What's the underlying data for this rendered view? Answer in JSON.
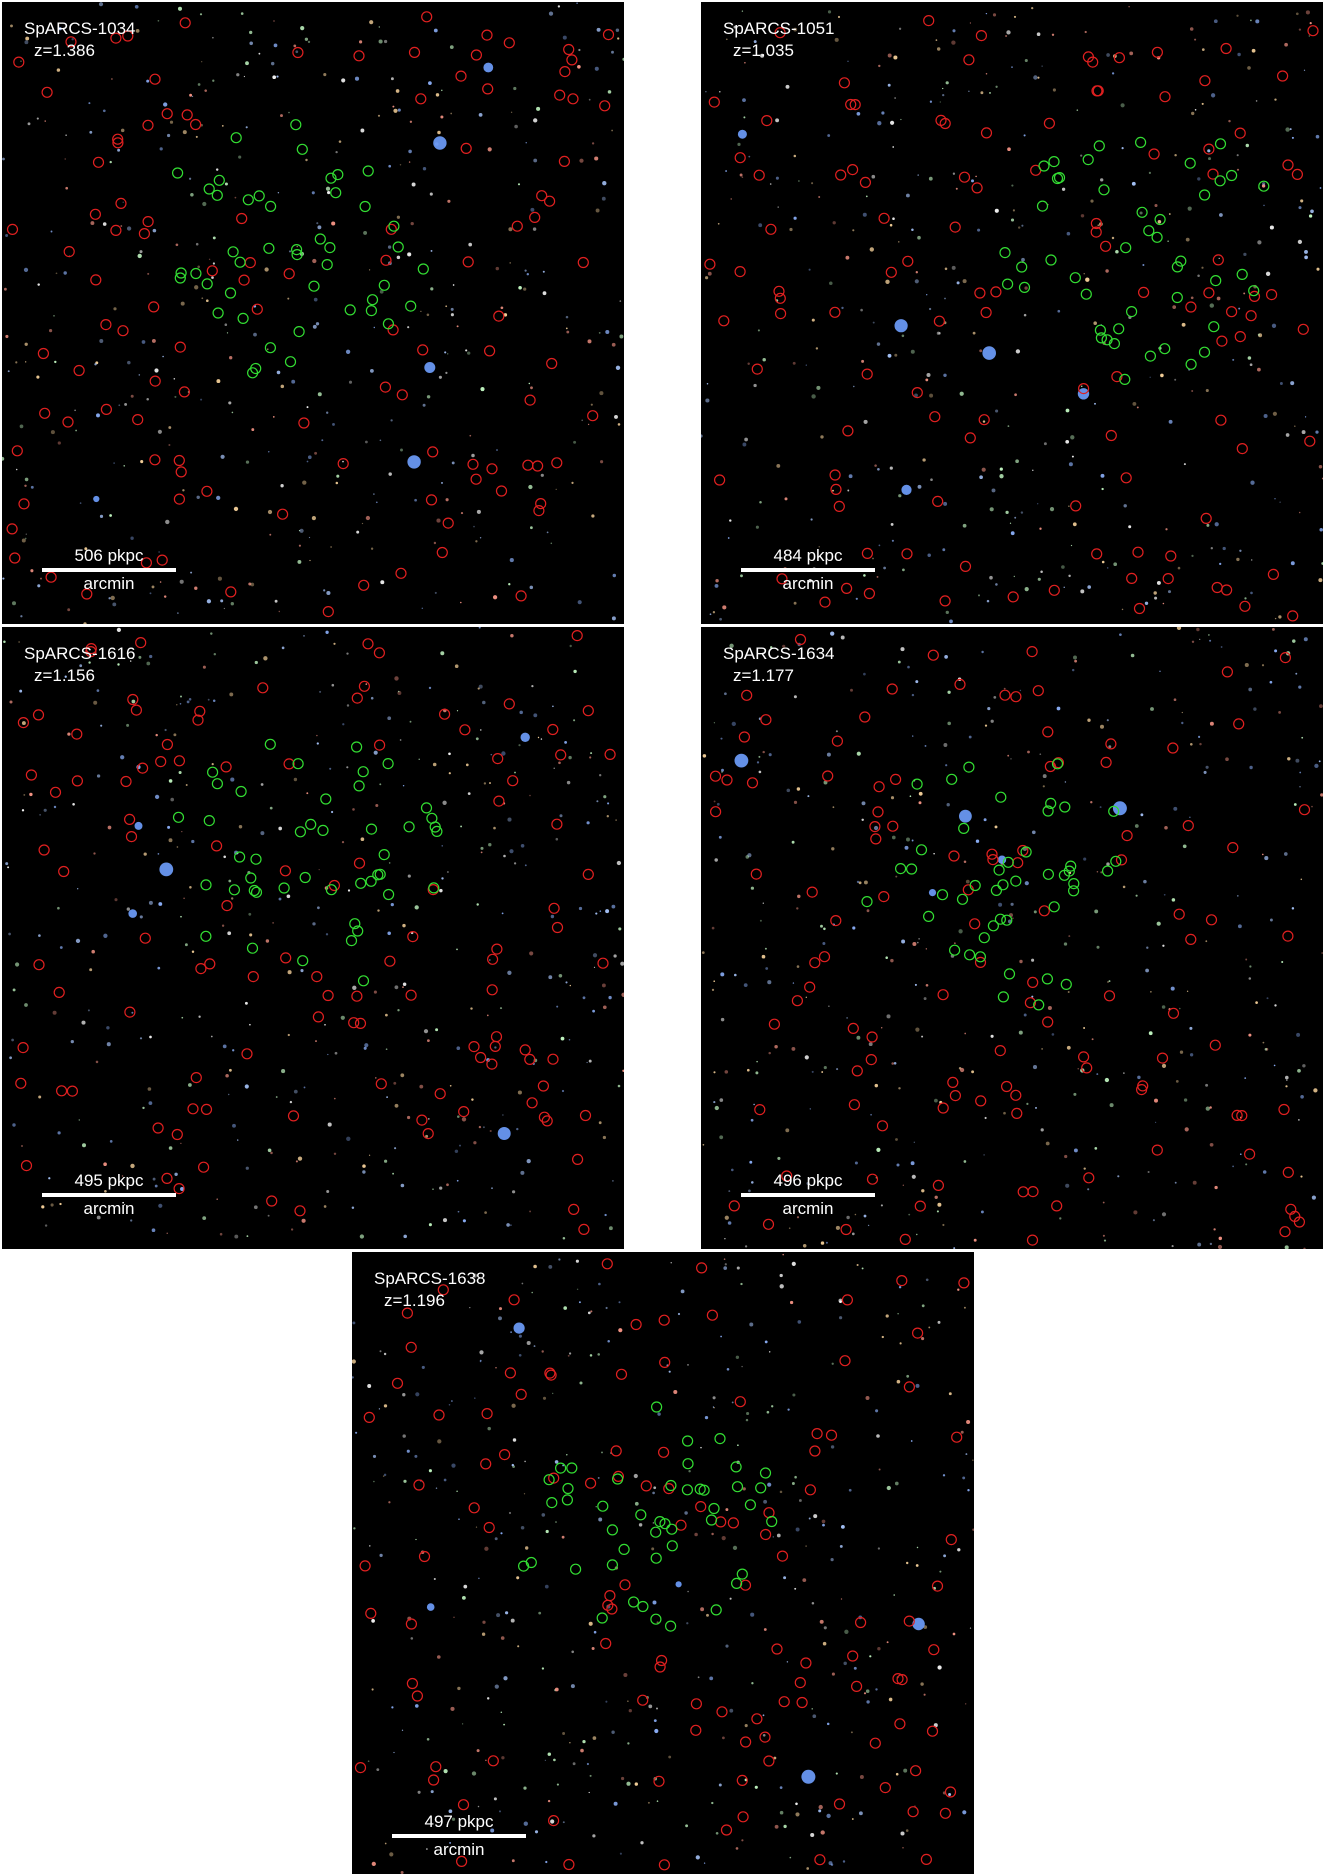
{
  "panels": [
    {
      "name": "SpARCS-1034",
      "redshift": "z=1.386",
      "scale_kpc": "506 pkpc",
      "scale_unit": "arcmin"
    },
    {
      "name": "SpARCS-1051",
      "redshift": "z=1.035",
      "scale_kpc": "484 pkpc",
      "scale_unit": "arcmin"
    },
    {
      "name": "SpARCS-1616",
      "redshift": "z=1.156",
      "scale_kpc": "495 pkpc",
      "scale_unit": "arcmin"
    },
    {
      "name": "SpARCS-1634",
      "redshift": "z=1.177",
      "scale_kpc": "496 pkpc",
      "scale_unit": "arcmin"
    },
    {
      "name": "SpARCS-1638",
      "redshift": "z=1.196",
      "scale_kpc": "497 pkpc",
      "scale_unit": "arcmin"
    }
  ],
  "colors": {
    "red_marker": "#e02020",
    "green_marker": "#33dd33",
    "background": "#000000",
    "label": "#ffffff"
  }
}
